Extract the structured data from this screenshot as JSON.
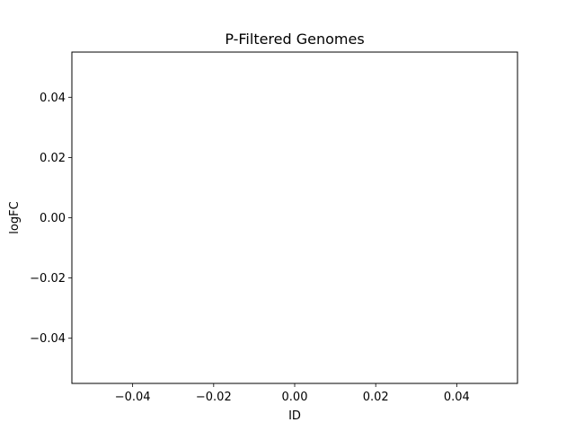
{
  "chart_data": {
    "type": "scatter",
    "title": "P-Filtered Genomes",
    "xlabel": "ID",
    "ylabel": "logFC",
    "xlim": [
      -0.055,
      0.055
    ],
    "ylim": [
      -0.055,
      0.055
    ],
    "x_ticks": [
      -0.04,
      -0.02,
      0.0,
      0.02,
      0.04
    ],
    "x_tick_labels": [
      "−0.04",
      "−0.02",
      "0.00",
      "0.02",
      "0.04"
    ],
    "y_ticks": [
      -0.04,
      -0.02,
      0.0,
      0.02,
      0.04
    ],
    "y_tick_labels": [
      "−0.04",
      "−0.02",
      "0.00",
      "0.02",
      "0.04"
    ],
    "grid": false,
    "series": [
      {
        "x": [],
        "y": []
      }
    ],
    "colors": {
      "axes": "#000000",
      "background": "#ffffff"
    }
  }
}
